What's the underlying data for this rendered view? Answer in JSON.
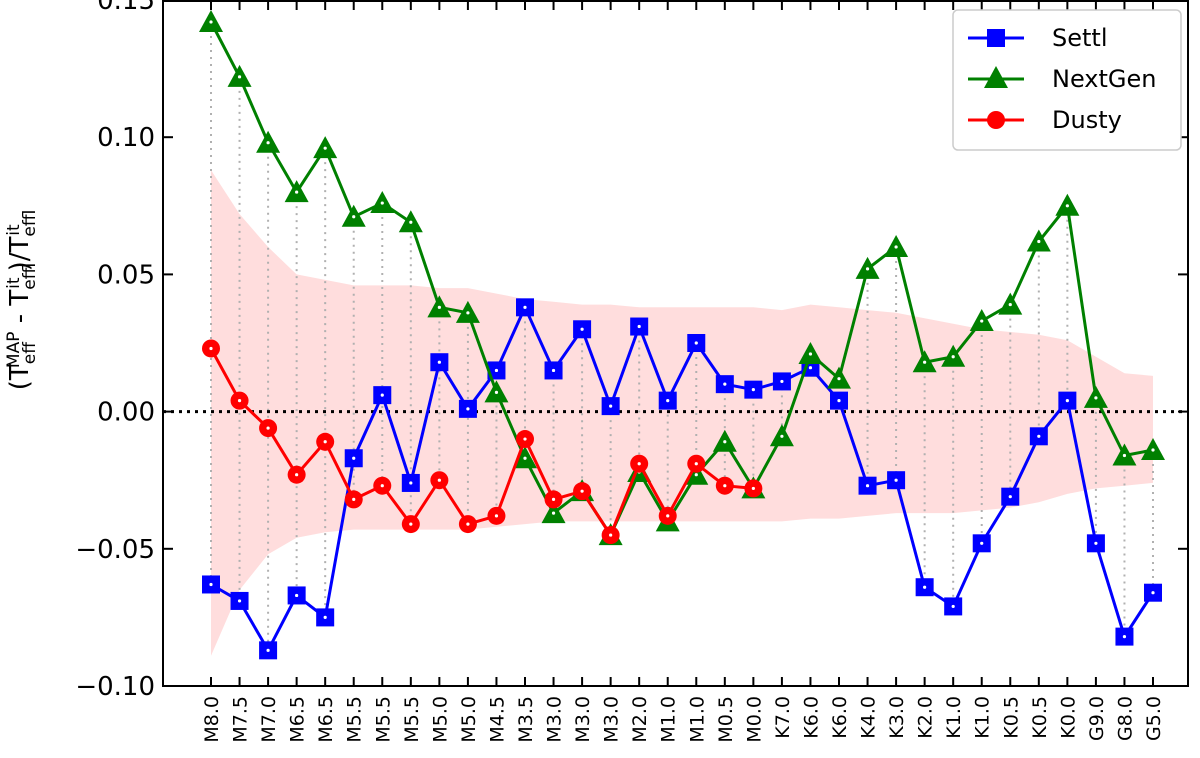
{
  "chart_data": {
    "type": "line",
    "xlabel": "",
    "ylabel": {
      "prefix": "(T",
      "sub1": "eff",
      "sup1": "MAP",
      "mid": " - T",
      "sub2": "eff",
      "sup2": "lit",
      "slash": ")/T",
      "sub3": "eff",
      "sup3": "lit"
    },
    "ylim": [
      -0.1,
      0.15
    ],
    "yticks": [
      -0.1,
      -0.05,
      0.0,
      0.05,
      0.1,
      0.15
    ],
    "ytick_labels": [
      "−0.10",
      "−0.05",
      "0.00",
      "0.05",
      "0.10",
      "0.15"
    ],
    "categories": [
      "M8.0",
      "M7.5",
      "M7.0",
      "M6.5",
      "M6.5",
      "M5.5",
      "M5.5",
      "M5.5",
      "M5.0",
      "M5.0",
      "M4.5",
      "M3.5",
      "M3.0",
      "M3.0",
      "M3.0",
      "M2.0",
      "M1.0",
      "M1.0",
      "M0.5",
      "M0.0",
      "K7.0",
      "K6.0",
      "K6.0",
      "K4.0",
      "K3.0",
      "K2.0",
      "K1.0",
      "K1.0",
      "K0.5",
      "K0.5",
      "K0.0",
      "G9.0",
      "G8.0",
      "G5.0"
    ],
    "zero_line": true,
    "grid": false,
    "legend_position": "top-right",
    "series": [
      {
        "name": "Settl",
        "color": "#0000ff",
        "marker": "square",
        "values": [
          -0.063,
          -0.069,
          -0.087,
          -0.067,
          -0.075,
          -0.017,
          0.006,
          -0.026,
          0.018,
          0.001,
          0.015,
          0.038,
          0.015,
          0.03,
          0.002,
          0.031,
          0.004,
          0.025,
          0.01,
          0.008,
          0.011,
          0.016,
          0.004,
          -0.027,
          -0.025,
          -0.064,
          -0.071,
          -0.048,
          -0.031,
          -0.009,
          0.004,
          -0.048,
          -0.082,
          -0.066
        ]
      },
      {
        "name": "NextGen",
        "color": "#008000",
        "marker": "triangle",
        "values": [
          0.142,
          0.122,
          0.098,
          0.08,
          0.096,
          0.071,
          0.076,
          0.069,
          0.038,
          0.036,
          0.007,
          -0.017,
          -0.037,
          -0.029,
          -0.045,
          -0.022,
          -0.04,
          -0.023,
          -0.011,
          -0.028,
          -0.009,
          0.021,
          0.012,
          0.052,
          0.06,
          0.018,
          0.02,
          0.033,
          0.039,
          0.062,
          0.075,
          0.005,
          -0.016,
          -0.014
        ]
      },
      {
        "name": "Dusty",
        "color": "#ff0000",
        "marker": "circle",
        "values": [
          0.023,
          0.004,
          -0.006,
          -0.023,
          -0.011,
          -0.032,
          -0.027,
          -0.041,
          -0.025,
          -0.041,
          -0.038,
          -0.01,
          -0.032,
          -0.029,
          -0.045,
          -0.019,
          -0.038,
          -0.019,
          -0.027,
          -0.028,
          null,
          null,
          null,
          null,
          null,
          null,
          null,
          null,
          null,
          null,
          null,
          null,
          null,
          null
        ]
      }
    ],
    "band": {
      "color": "#ffdddd",
      "upper": [
        0.088,
        0.072,
        0.06,
        0.05,
        0.048,
        0.046,
        0.046,
        0.046,
        0.045,
        0.045,
        0.043,
        0.041,
        0.04,
        0.039,
        0.039,
        0.038,
        0.038,
        0.038,
        0.038,
        0.038,
        0.037,
        0.039,
        0.038,
        0.037,
        0.036,
        0.034,
        0.032,
        0.03,
        0.029,
        0.028,
        0.026,
        0.02,
        0.014,
        0.013
      ],
      "lower": [
        -0.089,
        -0.065,
        -0.052,
        -0.046,
        -0.044,
        -0.043,
        -0.043,
        -0.043,
        -0.043,
        -0.043,
        -0.042,
        -0.041,
        -0.04,
        -0.04,
        -0.04,
        -0.04,
        -0.04,
        -0.04,
        -0.04,
        -0.04,
        -0.04,
        -0.039,
        -0.039,
        -0.038,
        -0.037,
        -0.037,
        -0.037,
        -0.036,
        -0.035,
        -0.033,
        -0.03,
        -0.028,
        -0.027,
        -0.026
      ]
    }
  }
}
